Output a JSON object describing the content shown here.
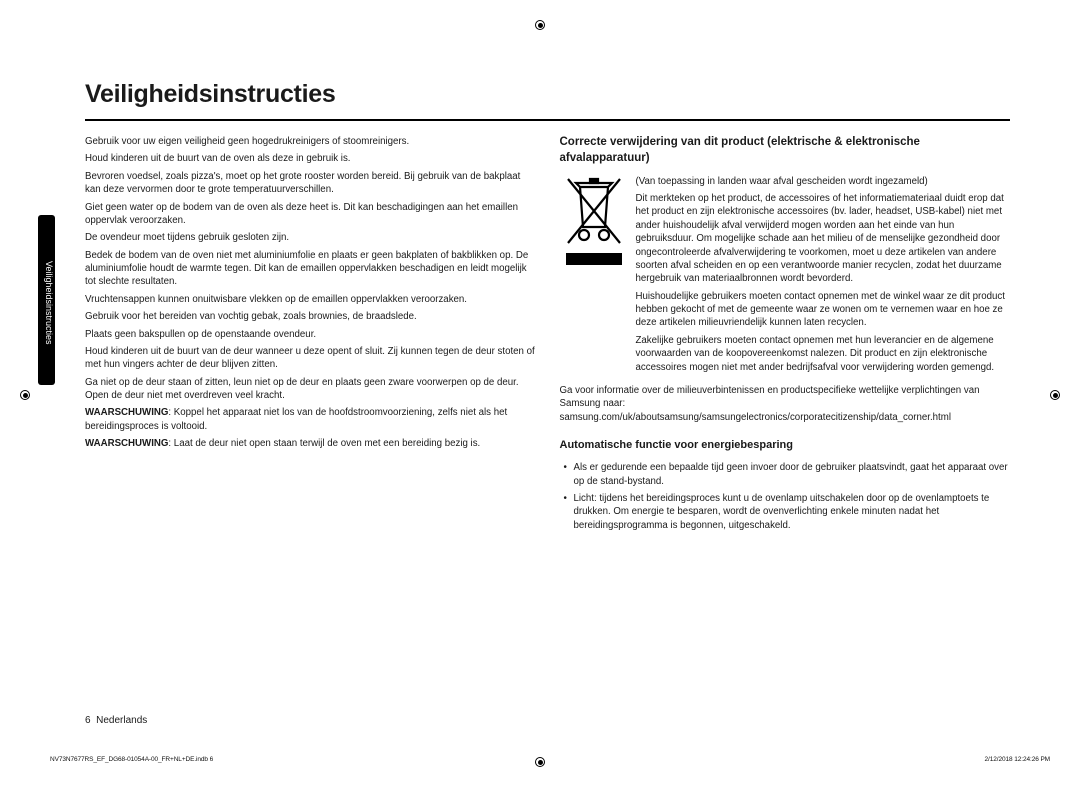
{
  "title": "Veiligheidsinstructies",
  "sideTab": "Veiligheidsinstructies",
  "left": {
    "paras": [
      "Gebruik voor uw eigen veiligheid geen hogedrukreinigers of stoomreinigers.",
      "Houd kinderen uit de buurt van de oven als deze in gebruik is.",
      "Bevroren voedsel, zoals pizza's, moet op het grote rooster worden bereid. Bij gebruik van de bakplaat kan deze vervormen door te grote temperatuurverschillen.",
      "Giet geen water op de bodem van de oven als deze heet is. Dit kan beschadigingen aan het emaillen oppervlak veroorzaken.",
      "De ovendeur moet tijdens gebruik gesloten zijn.",
      "Bedek de bodem van de oven niet met aluminiumfolie en plaats er geen bakplaten of bakblikken op. De aluminiumfolie houdt de warmte tegen. Dit kan de emaillen oppervlakken beschadigen en leidt mogelijk tot slechte resultaten.",
      "Vruchtensappen kunnen onuitwisbare vlekken op de emaillen oppervlakken veroorzaken.",
      "Gebruik voor het bereiden van vochtig gebak, zoals brownies, de braadslede.",
      "Plaats geen bakspullen op de openstaande ovendeur.",
      "Houd kinderen uit de buurt van de deur wanneer u deze opent of sluit. Zij kunnen tegen de deur stoten of met hun vingers achter de deur blijven zitten.",
      "Ga niet op de deur staan of zitten, leun niet op de deur en plaats geen zware voorwerpen op de deur. Open de deur niet met overdreven veel kracht."
    ],
    "warnLabel": "WAARSCHUWING",
    "warn1": ": Koppel het apparaat niet los van de hoofdstroomvoorziening, zelfs niet als het bereidingsproces is voltooid.",
    "warn2": ": Laat de deur niet open staan terwijl de oven met een bereiding bezig is."
  },
  "right": {
    "h2": "Correcte verwijdering van dit product (elektrische & elektronische afvalapparatuur)",
    "weee": {
      "note": "(Van toepassing in landen waar afval gescheiden wordt ingezameld)",
      "p1": "Dit merkteken op het product, de accessoires of het informatiemateriaal duidt erop dat het product en zijn elektronische accessoires (bv. lader, headset, USB-kabel) niet met ander huishoudelijk afval verwijderd mogen worden aan het einde van hun gebruiksduur. Om mogelijke schade aan het milieu of de menselijke gezondheid door ongecontroleerde afvalverwijdering te voorkomen, moet u deze artikelen van andere soorten afval scheiden en op een verantwoorde manier recyclen, zodat het duurzame hergebruik van materiaalbronnen wordt bevorderd.",
      "p2": "Huishoudelijke gebruikers moeten contact opnemen met de winkel waar ze dit product hebben gekocht of met de gemeente waar ze wonen om te vernemen waar en hoe ze deze artikelen milieuvriendelijk kunnen laten recyclen.",
      "p3": "Zakelijke gebruikers moeten contact opnemen met hun leverancier en de algemene voorwaarden van de koopovereenkomst nalezen. Dit product en zijn elektronische accessoires mogen niet met ander bedrijfsafval voor verwijdering worden gemengd."
    },
    "infoLink": "Ga voor informatie over de milieuverbintenissen en productspecifieke wettelijke verplichtingen van Samsung naar: samsung.com/uk/aboutsamsung/samsungelectronics/corporatecitizenship/data_corner.html",
    "h3": "Automatische functie voor energiebesparing",
    "bullets": [
      "Als er gedurende een bepaalde tijd geen invoer door de gebruiker plaatsvindt, gaat het apparaat over op de stand-bystand.",
      "Licht: tijdens het bereidingsproces kunt u de ovenlamp uitschakelen door op de ovenlamptoets te drukken. Om energie te besparen, wordt de ovenverlichting enkele minuten nadat het bereidingsprogramma is begonnen, uitgeschakeld."
    ]
  },
  "footer": {
    "pagenum": "6",
    "lang": "Nederlands"
  },
  "printmarks": {
    "file": "NV73N7677RS_EF_DG68-01054A-00_FR+NL+DE.indb   6",
    "date": "2/12/2018   12:24:26 PM"
  },
  "colors": {
    "text": "#1a1a1a",
    "rule": "#000000",
    "tab_bg": "#000000",
    "tab_fg": "#ffffff"
  }
}
